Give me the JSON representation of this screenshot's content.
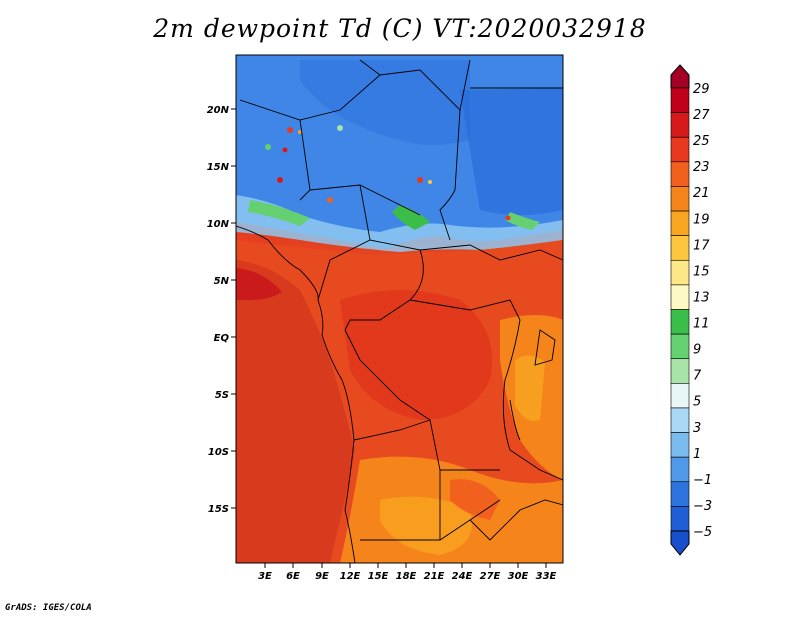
{
  "title": "2m dewpoint Td (C) VT:2020032918",
  "credit": "GrADS: IGES/COLA",
  "map": {
    "lat_labels": [
      "20N",
      "15N",
      "10N",
      "5N",
      "EQ",
      "5S",
      "10S",
      "15S"
    ],
    "lon_labels": [
      "3E",
      "6E",
      "9E",
      "12E",
      "15E",
      "18E",
      "21E",
      "24E",
      "27E",
      "30E",
      "33E"
    ]
  },
  "colorbar": {
    "labels": [
      "29",
      "27",
      "25",
      "23",
      "21",
      "19",
      "17",
      "15",
      "13",
      "11",
      "9",
      "7",
      "5",
      "3",
      "1",
      "−1",
      "−3",
      "−5"
    ],
    "colors": [
      "#a50026",
      "#c1001a",
      "#d7191c",
      "#e8381f",
      "#f2601d",
      "#f5851b",
      "#f8a520",
      "#fcc63e",
      "#fde887",
      "#fcf9c4",
      "#3bbd4a",
      "#64d070",
      "#a8e4a8",
      "#e8f6f7",
      "#a9d8f4",
      "#7bbcef",
      "#5099e8",
      "#2e74de",
      "#1f5ed4",
      "#1a4fcc"
    ]
  }
}
